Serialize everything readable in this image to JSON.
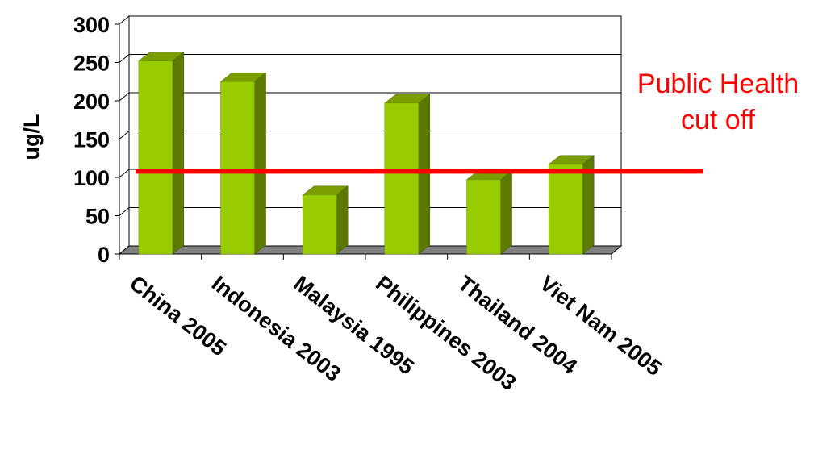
{
  "chart_data": {
    "type": "bar",
    "title": "",
    "xlabel": "",
    "ylabel": "ug/L",
    "ylim": [
      0,
      300
    ],
    "yticks": [
      0,
      50,
      100,
      150,
      200,
      250,
      300
    ],
    "categories": [
      "China 2005",
      "Indonesia 2003",
      "Malaysia 1995",
      "Philippines 2003",
      "Thailand 2004",
      "Viet Nam 2005"
    ],
    "values": [
      252,
      225,
      77,
      197,
      97,
      117
    ],
    "grid": true,
    "legend": "none",
    "reference_line": {
      "value": 108,
      "label_lines": [
        "Public Health",
        "cut off"
      ],
      "color": "#ff0000"
    },
    "colors": {
      "bar_front": "#99cc00",
      "bar_side": "#5c7a00",
      "bar_top": "#7a9e00",
      "floor": "#808080",
      "grid": "#000000",
      "reference": "#ff0000"
    }
  }
}
